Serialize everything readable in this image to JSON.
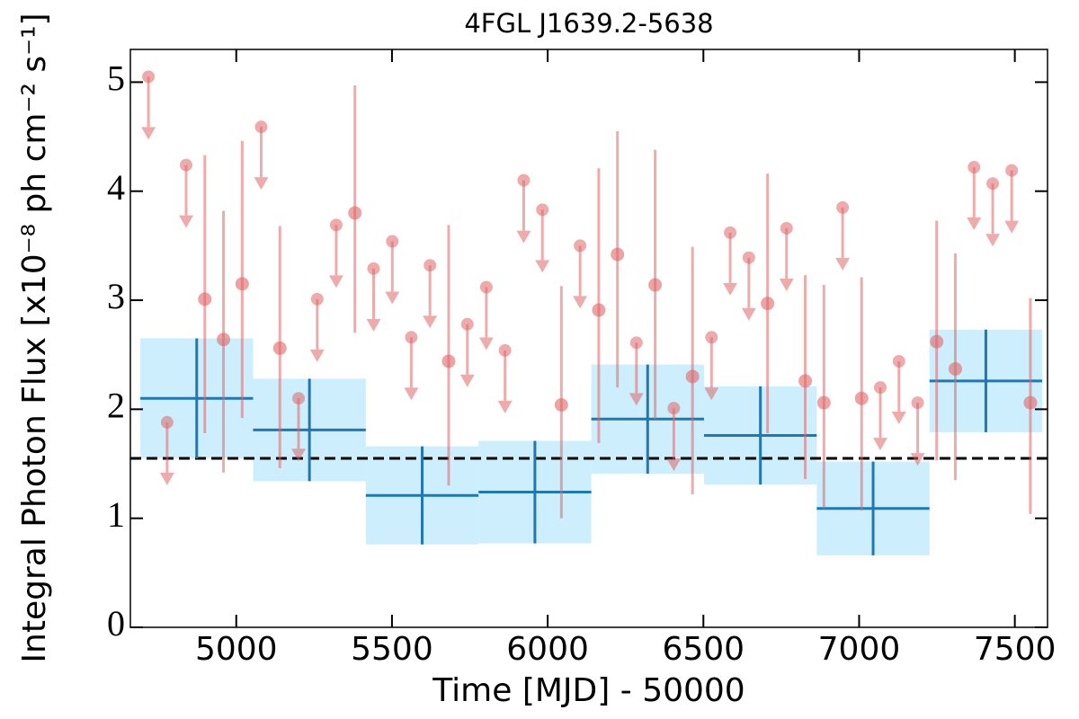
{
  "chart_data": {
    "type": "lightcurve",
    "title": "4FGL J1639.2-5638",
    "x_label": "Time [MJD] - 50000",
    "y_label": "Integral Photon Flux [x10⁻⁸ ph cm⁻² s⁻¹]",
    "xlim": [
      4660,
      7605
    ],
    "ylim": [
      0,
      5.3
    ],
    "xticks": [
      5000,
      5500,
      6000,
      6500,
      7000,
      7500
    ],
    "yticks": [
      0,
      1,
      2,
      3,
      4,
      5
    ],
    "reference_line": 1.55,
    "binned": {
      "color": "#1f77b4",
      "band_color": "#cdeefc",
      "edges": [
        4692,
        5054,
        5416,
        5778,
        6140,
        6502,
        6864,
        7226,
        7588
      ],
      "values": [
        2.1,
        1.81,
        1.21,
        1.24,
        1.91,
        1.76,
        1.09,
        2.26
      ],
      "errors": [
        0.55,
        0.47,
        0.45,
        0.47,
        0.5,
        0.45,
        0.43,
        0.47
      ]
    },
    "detections": {
      "color": "#e06666",
      "x": [
        4899,
        4959,
        5019,
        5140,
        5381,
        5682,
        6044,
        6164,
        6224,
        6345,
        6465,
        6706,
        6827,
        6887,
        7008,
        7249,
        7309,
        7550
      ],
      "values": [
        3.01,
        2.64,
        3.15,
        2.56,
        3.8,
        2.44,
        2.04,
        2.91,
        3.42,
        3.14,
        2.3,
        2.97,
        2.26,
        2.06,
        2.1,
        2.62,
        2.37,
        2.06
      ],
      "lower": [
        1.78,
        1.42,
        1.92,
        1.46,
        2.7,
        1.3,
        1.0,
        1.69,
        2.2,
        1.91,
        1.22,
        1.78,
        1.36,
        1.09,
        1.07,
        1.53,
        1.35,
        1.04
      ],
      "upper": [
        4.33,
        3.82,
        4.46,
        3.68,
        4.97,
        3.69,
        3.13,
        4.21,
        4.55,
        4.38,
        3.49,
        4.16,
        3.23,
        3.14,
        3.21,
        3.73,
        3.43,
        3.02
      ]
    },
    "upper_limits": {
      "color": "#e06666",
      "x": [
        4718,
        4778,
        4839,
        5080,
        5200,
        5260,
        5321,
        5441,
        5501,
        5562,
        5622,
        5742,
        5803,
        5863,
        5923,
        5983,
        6104,
        6285,
        6405,
        6526,
        6586,
        6646,
        6767,
        6947,
        7068,
        7128,
        7188,
        7369,
        7429,
        7490
      ],
      "values": [
        5.05,
        1.88,
        4.24,
        4.59,
        2.1,
        3.01,
        3.69,
        3.29,
        3.54,
        2.66,
        3.32,
        2.78,
        3.12,
        2.54,
        4.1,
        3.83,
        3.5,
        2.61,
        2.01,
        2.66,
        3.62,
        3.39,
        3.66,
        3.85,
        2.2,
        2.44,
        2.06,
        4.22,
        4.07,
        4.19
      ]
    }
  }
}
